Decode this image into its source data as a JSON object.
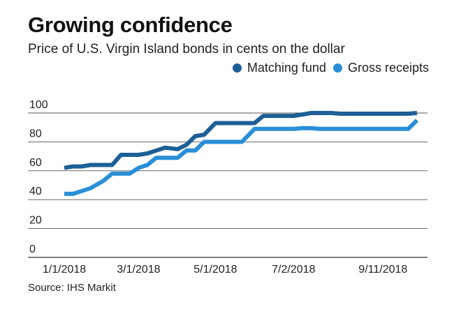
{
  "title": "Growing confidence",
  "subtitle": "Price of U.S. Virgin Island bonds in cents on the dollar",
  "source": "Source: IHS Markit",
  "chart_data": {
    "type": "line",
    "x_ticks": [
      "1/1/2018",
      "3/1/2018",
      "5/1/2018",
      "7/2/2018",
      "9/11/2018"
    ],
    "ylim": [
      0,
      100
    ],
    "y_ticks": [
      "0",
      "20",
      "40",
      "60",
      "80",
      "100"
    ],
    "grid": true,
    "legend_position": "top-right",
    "series": [
      {
        "name": "Matching fund",
        "color": "#1d5f96",
        "x": [
          "2018-01-01",
          "2018-01-08",
          "2018-01-15",
          "2018-01-22",
          "2018-02-01",
          "2018-02-08",
          "2018-02-15",
          "2018-02-22",
          "2018-03-01",
          "2018-03-08",
          "2018-03-15",
          "2018-03-22",
          "2018-04-01",
          "2018-04-08",
          "2018-04-15",
          "2018-04-22",
          "2018-05-01",
          "2018-05-08",
          "2018-05-15",
          "2018-05-22",
          "2018-06-01",
          "2018-06-08",
          "2018-06-15",
          "2018-06-22",
          "2018-07-02",
          "2018-07-09",
          "2018-07-16",
          "2018-07-23",
          "2018-08-01",
          "2018-08-08",
          "2018-08-15",
          "2018-08-22",
          "2018-09-01",
          "2018-09-11",
          "2018-09-18",
          "2018-09-25",
          "2018-10-01",
          "2018-10-08"
        ],
        "values": [
          62,
          63,
          63,
          64,
          64,
          64,
          71,
          71,
          71,
          72,
          74,
          76,
          75,
          78,
          84,
          85,
          93,
          93,
          93,
          93,
          93,
          98,
          98,
          98,
          98,
          99,
          100,
          100,
          100,
          99.5,
          99.5,
          99.5,
          99.5,
          99.5,
          99.5,
          99.5,
          99.5,
          100
        ]
      },
      {
        "name": "Gross receipts",
        "color": "#2a8fd8",
        "x": [
          "2018-01-01",
          "2018-01-08",
          "2018-01-15",
          "2018-01-22",
          "2018-02-01",
          "2018-02-08",
          "2018-02-15",
          "2018-02-22",
          "2018-03-01",
          "2018-03-08",
          "2018-03-15",
          "2018-03-22",
          "2018-04-01",
          "2018-04-08",
          "2018-04-15",
          "2018-04-22",
          "2018-05-01",
          "2018-05-08",
          "2018-05-15",
          "2018-05-22",
          "2018-06-01",
          "2018-06-08",
          "2018-06-15",
          "2018-06-22",
          "2018-07-02",
          "2018-07-09",
          "2018-07-16",
          "2018-07-23",
          "2018-08-01",
          "2018-08-08",
          "2018-08-15",
          "2018-08-22",
          "2018-09-01",
          "2018-09-11",
          "2018-09-18",
          "2018-09-25",
          "2018-10-01",
          "2018-10-08"
        ],
        "values": [
          44,
          44,
          46,
          48,
          53,
          58,
          58,
          58,
          62,
          64,
          69,
          69,
          69,
          74,
          74,
          80,
          80,
          80,
          80,
          80,
          89,
          89,
          89,
          89,
          89,
          89.5,
          89.5,
          89,
          89,
          89,
          89,
          89,
          89,
          89,
          89,
          89,
          89,
          95
        ]
      }
    ]
  }
}
